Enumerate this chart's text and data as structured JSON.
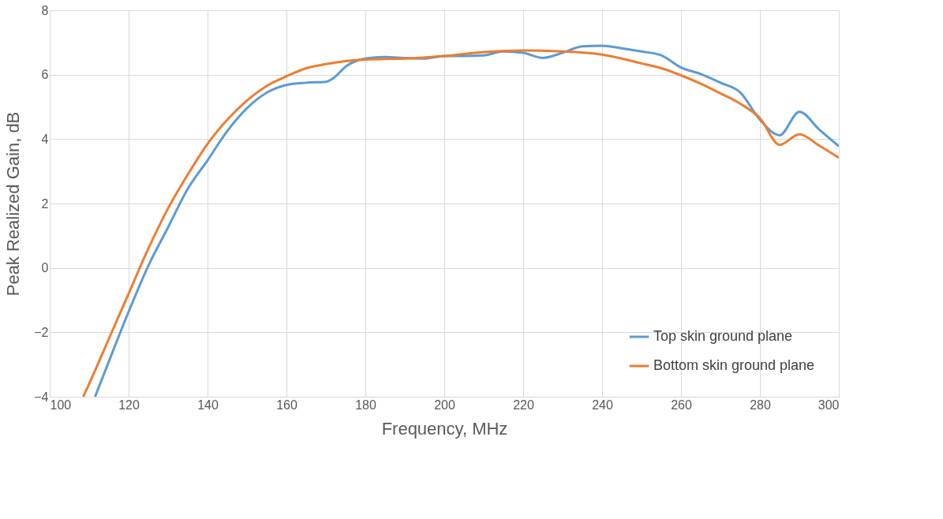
{
  "chart_data": {
    "type": "line",
    "xlabel": "Frequency, MHz",
    "ylabel": "Peak Realized Gain, dB",
    "xlim": [
      100,
      300
    ],
    "xticks": [
      100,
      120,
      140,
      160,
      180,
      200,
      220,
      240,
      260,
      280,
      300
    ],
    "ylim": [
      -4,
      8
    ],
    "yticks": [
      -4,
      -2,
      0,
      2,
      4,
      6,
      8
    ],
    "grid": true,
    "legend": "bottom right",
    "line_style": "solid",
    "marker": "none",
    "series": [
      {
        "name": "Top skin ground plane",
        "color": "#5b9bd5",
        "x": [
          111.5,
          115,
          120,
          125,
          130,
          135,
          140,
          145,
          150,
          155,
          160,
          165,
          170,
          172,
          175,
          180,
          185,
          190,
          195,
          200,
          205,
          210,
          215,
          220,
          225,
          230,
          235,
          240,
          245,
          250,
          255,
          260,
          265,
          270,
          275,
          280,
          285,
          290,
          295,
          300
        ],
        "values": [
          -4,
          -2.9,
          -1.36,
          0.07,
          1.26,
          2.46,
          3.34,
          4.25,
          4.96,
          5.44,
          5.68,
          5.75,
          5.78,
          5.9,
          6.25,
          6.5,
          6.55,
          6.52,
          6.5,
          6.58,
          6.58,
          6.6,
          6.72,
          6.68,
          6.52,
          6.68,
          6.88,
          6.9,
          6.82,
          6.72,
          6.6,
          6.22,
          6.02,
          5.75,
          5.45,
          4.6,
          4.12,
          4.85,
          4.3,
          3.78
        ]
      },
      {
        "name": "Bottom skin ground plane",
        "color": "#ed7d31",
        "x": [
          108.5,
          110,
          115,
          120,
          125,
          130,
          135,
          140,
          145,
          150,
          155,
          160,
          165,
          170,
          175,
          180,
          190,
          200,
          210,
          220,
          230,
          240,
          250,
          255,
          260,
          265,
          270,
          275,
          280,
          285,
          290,
          295,
          300
        ],
        "values": [
          -4,
          -3.6,
          -2.2,
          -0.8,
          0.6,
          1.85,
          2.9,
          3.85,
          4.6,
          5.2,
          5.65,
          5.95,
          6.2,
          6.33,
          6.42,
          6.47,
          6.5,
          6.58,
          6.7,
          6.75,
          6.72,
          6.62,
          6.35,
          6.2,
          5.98,
          5.72,
          5.42,
          5.1,
          4.65,
          3.82,
          4.15,
          3.8,
          3.42
        ]
      }
    ]
  }
}
